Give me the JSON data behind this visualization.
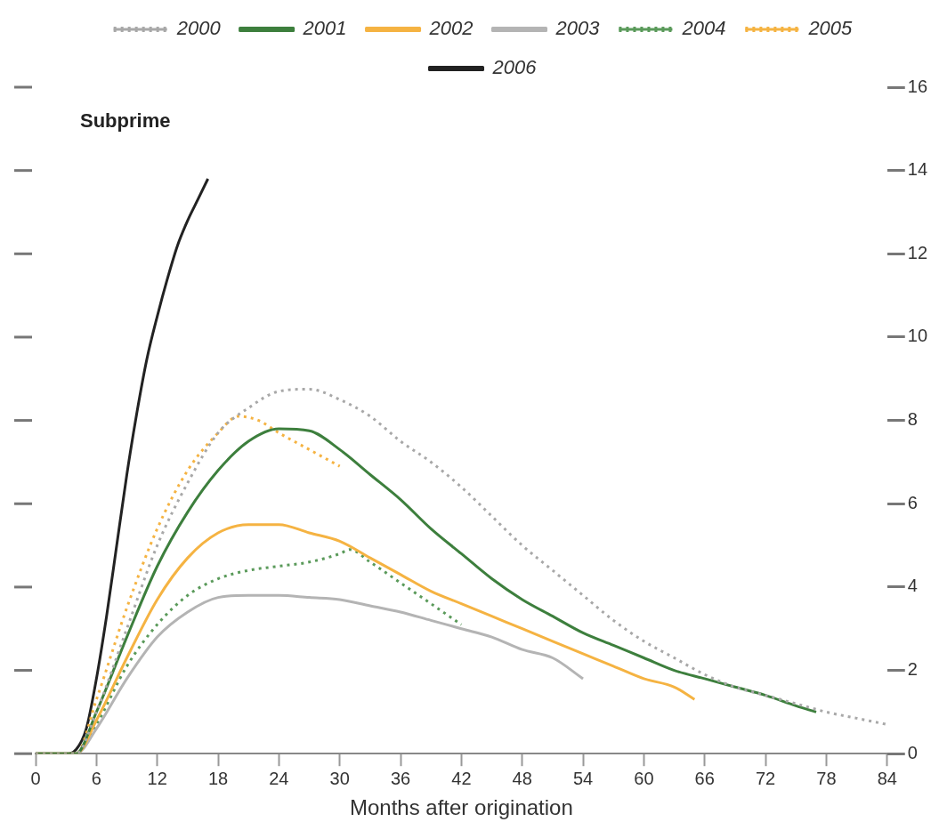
{
  "chart_data": {
    "type": "line",
    "xlabel": "Months after origination",
    "annotations": [
      "Subprime"
    ],
    "legend": "top",
    "grid": false,
    "marker": "none",
    "xlim": [
      0,
      84
    ],
    "xticks": [
      0,
      6,
      12,
      18,
      24,
      30,
      36,
      42,
      48,
      54,
      60,
      66,
      72,
      78,
      84
    ],
    "ylim": [
      0,
      16
    ],
    "yticks": [
      0,
      2,
      4,
      6,
      8,
      10,
      12,
      14,
      16
    ],
    "series": [
      {
        "name": "2000",
        "color": "#a8a8a8",
        "line_style": "dotted",
        "x": [
          0,
          4,
          6,
          9,
          12,
          15,
          18,
          21,
          24,
          27,
          30,
          33,
          36,
          39,
          42,
          45,
          48,
          51,
          54,
          57,
          60,
          63,
          66,
          69,
          72,
          75,
          78,
          81,
          84
        ],
        "values": [
          0,
          0,
          1,
          3,
          5,
          6.5,
          7.7,
          8.3,
          8.7,
          8.75,
          8.5,
          8.1,
          7.5,
          7,
          6.4,
          5.7,
          5,
          4.4,
          3.8,
          3.2,
          2.7,
          2.3,
          1.9,
          1.6,
          1.4,
          1.2,
          1,
          0.85,
          0.7
        ]
      },
      {
        "name": "2001",
        "color": "#3d7f3d",
        "line_style": "solid",
        "x": [
          0,
          4,
          6,
          9,
          12,
          15,
          18,
          21,
          24,
          27,
          30,
          33,
          36,
          39,
          42,
          45,
          48,
          51,
          54,
          57,
          60,
          63,
          66,
          69,
          72,
          75,
          77
        ],
        "values": [
          0,
          0,
          1,
          2.8,
          4.5,
          5.8,
          6.8,
          7.5,
          7.8,
          7.75,
          7.3,
          6.7,
          6.1,
          5.4,
          4.8,
          4.2,
          3.7,
          3.3,
          2.9,
          2.6,
          2.3,
          2,
          1.8,
          1.6,
          1.4,
          1.15,
          1
        ]
      },
      {
        "name": "2002",
        "color": "#f5b342",
        "line_style": "solid",
        "x": [
          0,
          4,
          6,
          9,
          12,
          15,
          18,
          21,
          24,
          27,
          30,
          33,
          36,
          39,
          42,
          45,
          48,
          51,
          54,
          57,
          60,
          63,
          65
        ],
        "values": [
          0,
          0,
          0.8,
          2.3,
          3.7,
          4.7,
          5.3,
          5.5,
          5.5,
          5.3,
          5.1,
          4.7,
          4.3,
          3.9,
          3.6,
          3.3,
          3,
          2.7,
          2.4,
          2.1,
          1.8,
          1.6,
          1.3
        ]
      },
      {
        "name": "2003",
        "color": "#b4b4b4",
        "line_style": "solid",
        "x": [
          0,
          4,
          6,
          9,
          12,
          15,
          18,
          21,
          24,
          27,
          30,
          33,
          36,
          39,
          42,
          45,
          48,
          51,
          54
        ],
        "values": [
          0,
          0,
          0.6,
          1.8,
          2.8,
          3.4,
          3.75,
          3.8,
          3.8,
          3.75,
          3.7,
          3.55,
          3.4,
          3.2,
          3,
          2.8,
          2.5,
          2.3,
          1.8
        ]
      },
      {
        "name": "2004",
        "color": "#5a9a5a",
        "line_style": "dotted",
        "x": [
          0,
          4,
          6,
          9,
          12,
          15,
          18,
          21,
          24,
          27,
          30,
          31,
          33,
          36,
          39,
          42
        ],
        "values": [
          0,
          0,
          0.7,
          2.1,
          3.1,
          3.8,
          4.2,
          4.4,
          4.5,
          4.6,
          4.8,
          4.9,
          4.6,
          4.1,
          3.6,
          3.1
        ]
      },
      {
        "name": "2005",
        "color": "#f5b342",
        "line_style": "dotted",
        "x": [
          0,
          4,
          6,
          9,
          12,
          15,
          18,
          20,
          22,
          24,
          27,
          30
        ],
        "values": [
          0,
          0,
          1.3,
          3.5,
          5.4,
          6.8,
          7.7,
          8.1,
          8,
          7.7,
          7.3,
          6.9
        ]
      },
      {
        "name": "2006",
        "color": "#222222",
        "line_style": "solid",
        "x": [
          0,
          3,
          4,
          5,
          6,
          7,
          8,
          9,
          10,
          11,
          12,
          13,
          14,
          15,
          16,
          17
        ],
        "values": [
          0,
          0,
          0.1,
          0.6,
          1.8,
          3.3,
          5,
          6.7,
          8.2,
          9.5,
          10.5,
          11.4,
          12.2,
          12.8,
          13.3,
          13.8
        ]
      }
    ]
  }
}
